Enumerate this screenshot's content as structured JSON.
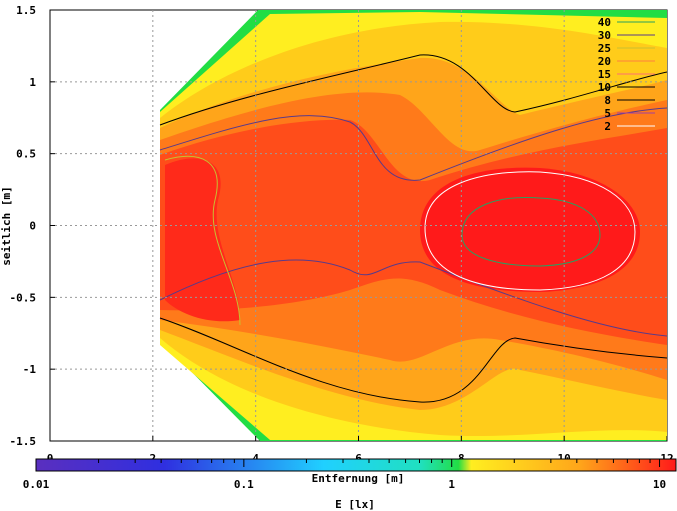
{
  "chart_data": {
    "type": "heatmap",
    "title": "",
    "xlabel": "Entfernung [m]",
    "ylabel": "seitlich [m]",
    "xlim": [
      0,
      12
    ],
    "ylim": [
      -1.5,
      1.5
    ],
    "x_ticks": [
      "0",
      "2",
      "4",
      "6",
      "8",
      "10",
      "12"
    ],
    "y_ticks": [
      "1.5",
      "1",
      "0.5",
      "0",
      "-0.5",
      "-1",
      "-1.5"
    ],
    "grid": true,
    "contour_levels": [
      "40",
      "30",
      "25",
      "20",
      "15",
      "10",
      "8",
      "5",
      "2"
    ],
    "contour_colors": [
      "#2aa060",
      "#5a3a8a",
      "#c8c030",
      "#ff8040",
      "#ff7070",
      "#000000",
      "#000000",
      "#a040a0",
      "#ffffff"
    ],
    "legend_placement": "top-right",
    "colorbar": {
      "label": "E [lx]",
      "scale": "log",
      "range": [
        0.01,
        12
      ],
      "tick_labels": [
        "0.01",
        "0.1",
        "1",
        "10"
      ],
      "tick_values": [
        0.01,
        0.1,
        1,
        10
      ]
    },
    "peak_region": {
      "x": 9.2,
      "y": -0.05,
      "level": "max"
    }
  },
  "colors": {
    "max": "#ff1a1a",
    "high": "#ff4d1a",
    "mid_high": "#ff7a1a",
    "mid": "#ffa51a",
    "low": "#ffcc1a",
    "lower": "#ffee20",
    "edge": "#22dd44"
  }
}
